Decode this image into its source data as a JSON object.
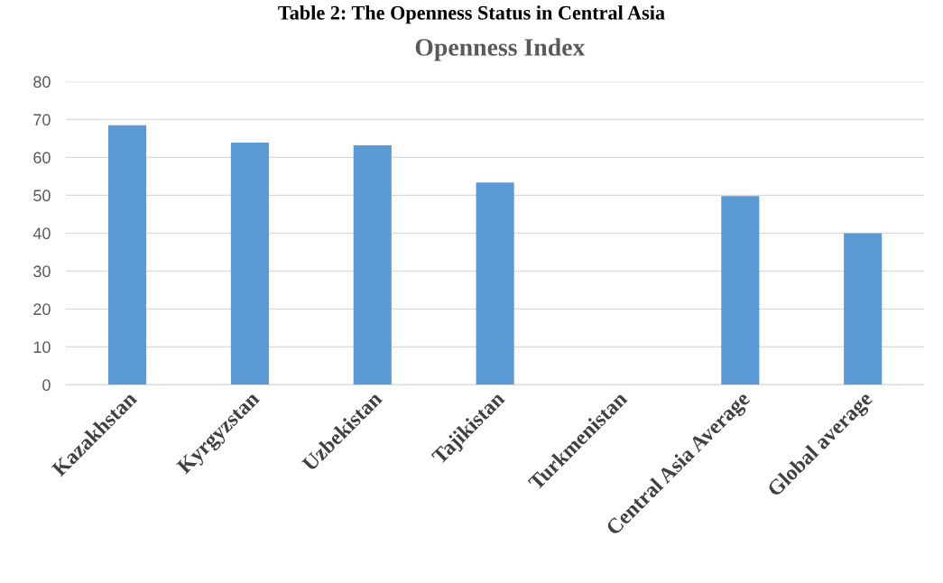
{
  "chart_data": {
    "type": "bar",
    "title": "Openness Index",
    "annotations": [
      "Table 2: The Openness Status in Central Asia"
    ],
    "categories": [
      "Kazakhstan",
      "Kyrgyzstan",
      "Uzbekistan",
      "Tajikistan",
      "Turkmenistan",
      "Central Asia Average",
      "Global average"
    ],
    "values": [
      68.5,
      63.9,
      63.2,
      53.4,
      null,
      49.8,
      40
    ],
    "color": "#5b9bd5",
    "ylim": [
      0,
      80
    ],
    "yticks": [
      0,
      10,
      20,
      30,
      40,
      50,
      60,
      70,
      80
    ],
    "grid": "y"
  }
}
